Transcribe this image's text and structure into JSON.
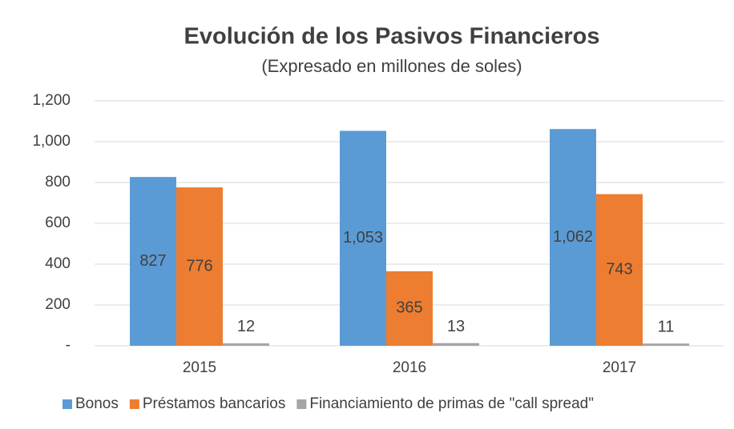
{
  "chart_data": {
    "type": "bar",
    "title": "Evolución de los Pasivos Financieros",
    "subtitle": "(Expresado en millones de soles)",
    "categories": [
      "2015",
      "2016",
      "2017"
    ],
    "series": [
      {
        "name": "Bonos",
        "color": "#5b9bd5",
        "values": [
          827,
          1053,
          1062
        ],
        "value_labels": [
          "827",
          "1,053",
          "1,062"
        ]
      },
      {
        "name": "Préstamos bancarios",
        "color": "#ed7d31",
        "values": [
          776,
          365,
          743
        ]
      },
      {
        "name": "Financiamiento de primas de \"call spread\"",
        "color": "#a5a5a5",
        "values": [
          12,
          13,
          11
        ]
      }
    ],
    "ylim": [
      0,
      1200
    ],
    "yticks": [
      {
        "value": 0,
        "label": "-"
      },
      200,
      400,
      600,
      800,
      {
        "value": 1000,
        "label": "1,000"
      },
      {
        "value": 1200,
        "label": "1,200"
      }
    ],
    "grid": true,
    "legend": "bottom"
  }
}
